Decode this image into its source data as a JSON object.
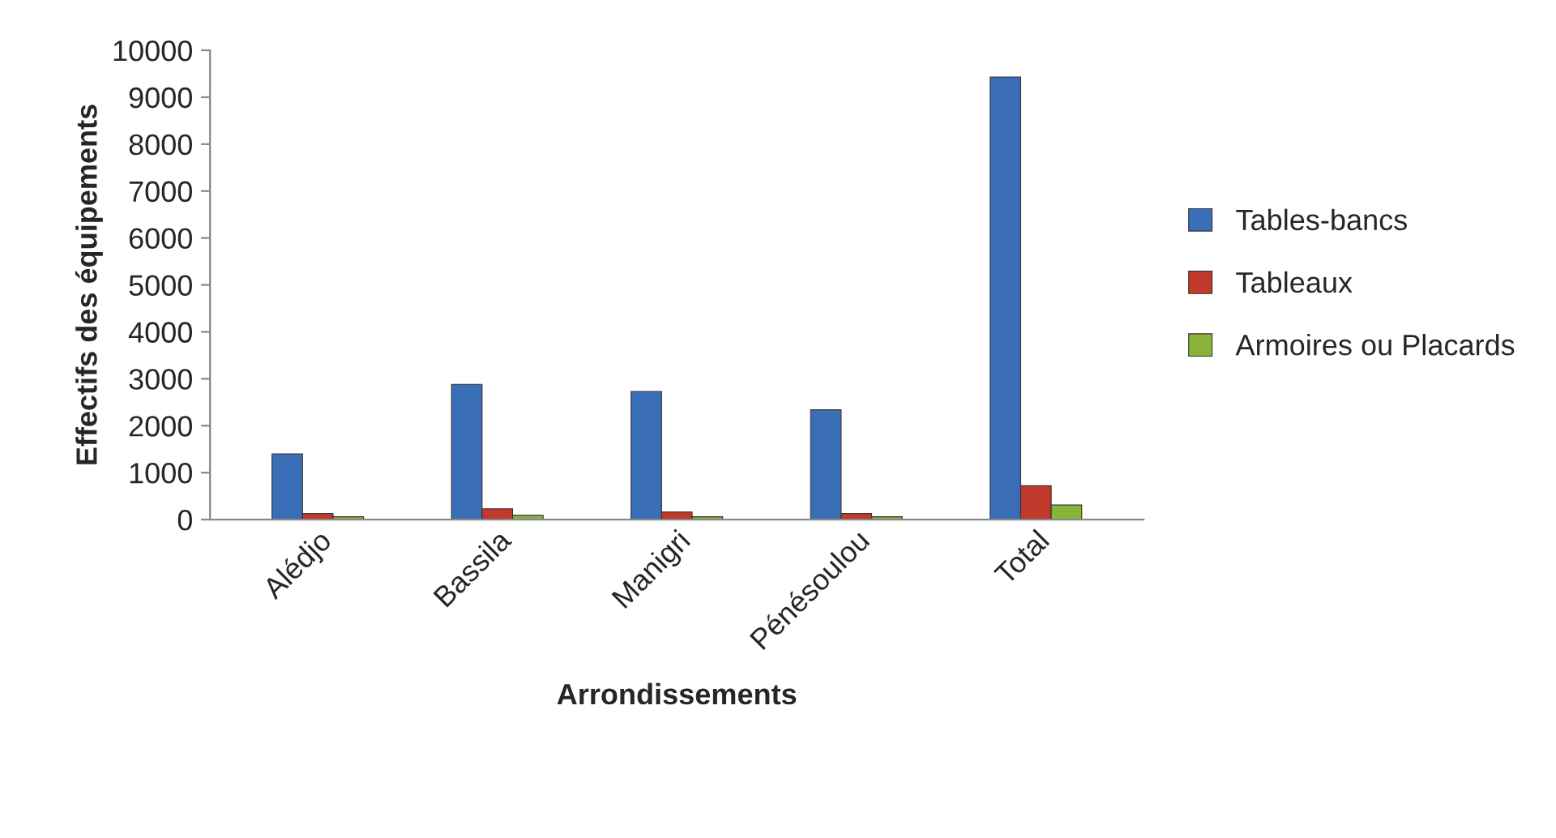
{
  "chart_data": {
    "type": "bar",
    "xlabel": "Arrondissements",
    "ylabel": "Effectifs des équipements",
    "categories": [
      "Alédjo",
      "Bassila",
      "Manigri",
      "Pénésoulou",
      "Total"
    ],
    "series": [
      {
        "name": "Tables-bancs",
        "color": "#3a6fb8",
        "values": [
          1400,
          2880,
          2730,
          2340,
          9430
        ]
      },
      {
        "name": "Tableaux",
        "color": "#c0392b",
        "values": [
          130,
          230,
          160,
          130,
          720
        ]
      },
      {
        "name": "Armoires ou Placards",
        "color": "#8ab33a",
        "values": [
          60,
          90,
          60,
          60,
          310
        ]
      }
    ],
    "ylim": [
      0,
      10000
    ],
    "yticks": [
      0,
      1000,
      2000,
      3000,
      4000,
      5000,
      6000,
      7000,
      8000,
      9000,
      10000
    ],
    "grid": false,
    "legend": "right"
  }
}
